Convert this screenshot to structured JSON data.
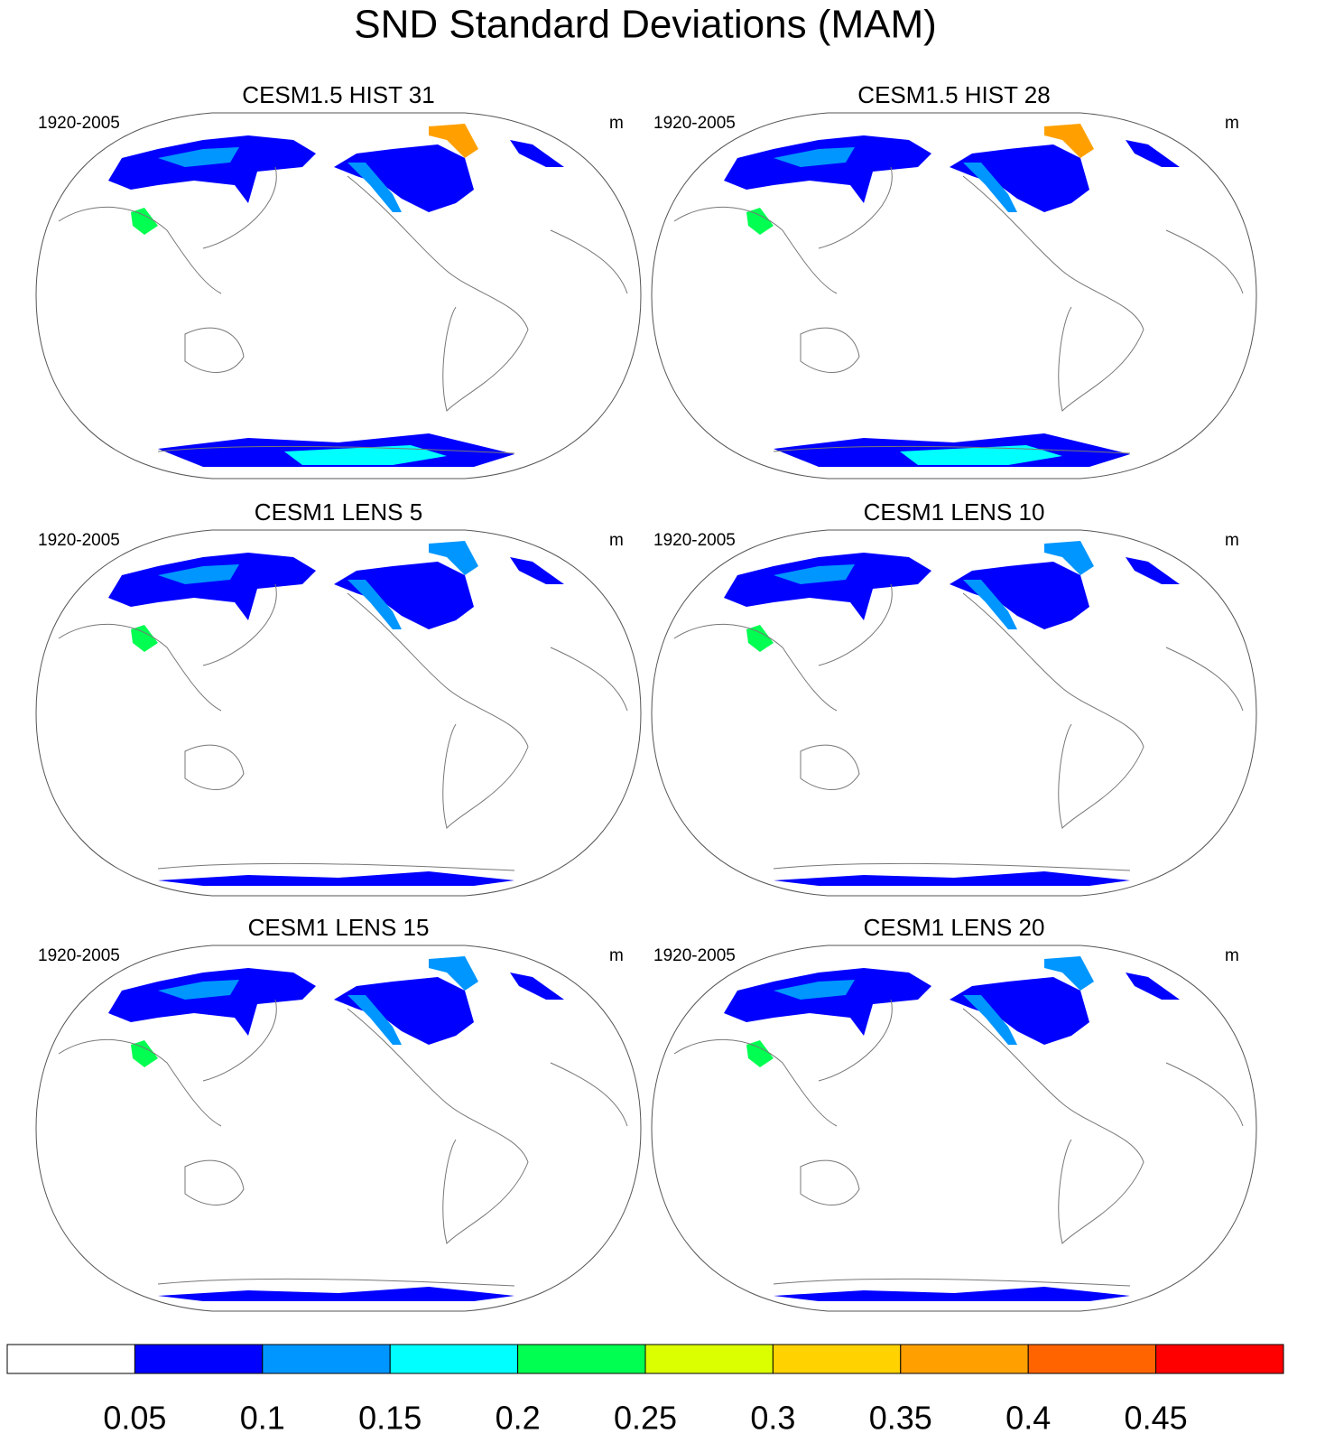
{
  "title": "SND Standard Deviations (MAM)",
  "panels": [
    {
      "title": "CESM1.5 HIST 31",
      "period": "1920-2005",
      "units": "m"
    },
    {
      "title": "CESM1.5 HIST 28",
      "period": "1920-2005",
      "units": "m"
    },
    {
      "title": "CESM1 LENS 5",
      "period": "1920-2005",
      "units": "m"
    },
    {
      "title": "CESM1 LENS 10",
      "period": "1920-2005",
      "units": "m"
    },
    {
      "title": "CESM1 LENS 15",
      "period": "1920-2005",
      "units": "m"
    },
    {
      "title": "CESM1 LENS 20",
      "period": "1920-2005",
      "units": "m"
    }
  ],
  "colorbar": {
    "colors": [
      "#ffffff",
      "#0000ff",
      "#0096ff",
      "#00ffff",
      "#00ff50",
      "#dcff00",
      "#ffd200",
      "#ffa000",
      "#ff6400",
      "#ff0000"
    ],
    "ticks": [
      0.05,
      0.1,
      0.15,
      0.2,
      0.25,
      0.3,
      0.35,
      0.4,
      0.45
    ]
  }
}
